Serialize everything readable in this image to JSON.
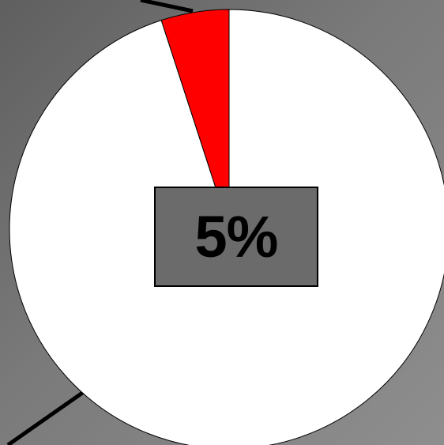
{
  "chart_data": {
    "type": "pie",
    "title": "",
    "slices": [
      {
        "label": "",
        "value": 5,
        "color": "#ff0000"
      },
      {
        "label": "",
        "value": 95,
        "color": "#ffffff"
      }
    ],
    "data_label": "5%",
    "legend": "none"
  },
  "colors": {
    "background": "#7a7a7a",
    "highlight_slice": "#ff0000",
    "remainder_slice": "#ffffff",
    "label_box": "#6b6b6b",
    "outline": "#000000"
  }
}
